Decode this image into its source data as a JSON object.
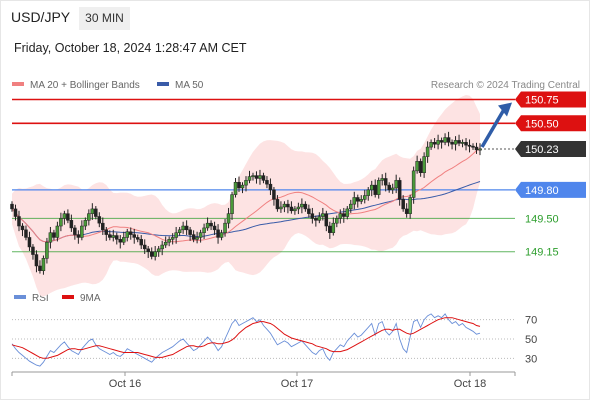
{
  "header": {
    "symbol": "USD/JPY",
    "timeframe": "30 MIN",
    "datetime": "Friday, October 18, 2024 1:28:47 AM CET",
    "source": "Research © 2024 Trading Central"
  },
  "legend": {
    "ma20": "MA 20 + Bollinger Bands",
    "ma50": "MA 50",
    "rsi": "RSI",
    "ma9": "9MA"
  },
  "colors": {
    "resistance": "#dd1111",
    "support": "#2d9e2d",
    "pivot": "#4f86ec",
    "ma20": "#f08080",
    "ma50": "#395ba8",
    "bollinger_fill": "#fde3e3",
    "rsi": "#6a8fd8",
    "rsi_ma": "#dd1111",
    "arrow": "#2f5da8"
  },
  "chart_data": [
    {
      "type": "candlestick",
      "x_labels": [
        "Oct 16",
        "Oct 17",
        "Oct 18"
      ],
      "levels": [
        {
          "value": "150.75",
          "kind": "resistance"
        },
        {
          "value": "150.50",
          "kind": "resistance"
        },
        {
          "value": "150.23",
          "kind": "last"
        },
        {
          "value": "149.80",
          "kind": "pivot"
        },
        {
          "value": "149.50",
          "kind": "support"
        },
        {
          "value": "149.15",
          "kind": "support"
        }
      ],
      "closes": [
        149.6,
        149.52,
        149.42,
        149.38,
        149.3,
        149.2,
        149.12,
        149.0,
        148.95,
        149.08,
        149.25,
        149.35,
        149.3,
        149.42,
        149.5,
        149.55,
        149.48,
        149.4,
        149.33,
        149.3,
        149.42,
        149.48,
        149.55,
        149.6,
        149.52,
        149.45,
        149.38,
        149.33,
        149.3,
        149.32,
        149.28,
        149.25,
        149.3,
        149.36,
        149.33,
        149.3,
        149.28,
        149.22,
        149.18,
        149.15,
        149.1,
        149.15,
        149.18,
        149.22,
        149.25,
        149.28,
        149.3,
        149.35,
        149.38,
        149.42,
        149.38,
        149.33,
        149.28,
        149.3,
        149.35,
        149.4,
        149.45,
        149.42,
        149.38,
        149.3,
        149.35,
        149.45,
        149.55,
        149.75,
        149.88,
        149.82,
        149.85,
        149.9,
        149.94,
        149.95,
        149.92,
        149.95,
        149.9,
        149.86,
        149.8,
        149.7,
        149.6,
        149.62,
        149.65,
        149.62,
        149.58,
        149.6,
        149.62,
        149.65,
        149.6,
        149.55,
        149.5,
        149.48,
        149.52,
        149.55,
        149.42,
        149.35,
        149.45,
        149.5,
        149.55,
        149.52,
        149.6,
        149.65,
        149.72,
        149.68,
        149.7,
        149.74,
        149.8,
        149.85,
        149.75,
        149.9,
        149.92,
        149.85,
        149.8,
        149.82,
        149.9,
        149.7,
        149.6,
        149.55,
        149.72,
        150.0,
        150.1,
        149.98,
        150.15,
        150.25,
        150.3,
        150.28,
        150.32,
        150.3,
        150.35,
        150.3,
        150.28,
        150.32,
        150.29,
        150.3,
        150.27,
        150.26,
        150.25,
        150.22,
        150.23
      ],
      "y_range": [
        148.8,
        150.85
      ]
    },
    {
      "type": "line",
      "title": "RSI",
      "y_ticks": [
        "70",
        "50",
        "30"
      ],
      "y_range": [
        20,
        80
      ],
      "series": [
        {
          "name": "RSI",
          "values": [
            45,
            40,
            36,
            33,
            30,
            27,
            25,
            23,
            22,
            26,
            32,
            38,
            36,
            40,
            44,
            47,
            42,
            38,
            36,
            34,
            40,
            44,
            48,
            50,
            44,
            40,
            38,
            36,
            34,
            36,
            33,
            32,
            35,
            40,
            38,
            36,
            34,
            32,
            30,
            28,
            26,
            30,
            33,
            36,
            38,
            40,
            42,
            45,
            48,
            50,
            46,
            42,
            38,
            40,
            44,
            48,
            52,
            48,
            44,
            38,
            42,
            50,
            58,
            66,
            70,
            64,
            66,
            68,
            70,
            72,
            68,
            70,
            64,
            60,
            56,
            50,
            44,
            46,
            48,
            46,
            42,
            44,
            46,
            48,
            44,
            40,
            36,
            34,
            38,
            40,
            32,
            28,
            36,
            40,
            44,
            42,
            48,
            52,
            56,
            52,
            54,
            58,
            62,
            66,
            54,
            66,
            68,
            58,
            54,
            58,
            66,
            50,
            40,
            36,
            52,
            68,
            70,
            62,
            70,
            74,
            76,
            72,
            74,
            72,
            76,
            70,
            66,
            68,
            64,
            66,
            62,
            60,
            58,
            55,
            56
          ]
        },
        {
          "name": "9MA",
          "values": [
            44,
            43,
            42,
            41,
            39,
            37,
            35,
            33,
            31,
            30,
            30,
            31,
            32,
            33,
            35,
            37,
            39,
            40,
            40,
            39,
            39,
            40,
            41,
            42,
            43,
            43,
            42,
            41,
            40,
            39,
            38,
            37,
            36,
            36,
            36,
            36,
            36,
            35,
            34,
            33,
            32,
            31,
            31,
            31,
            32,
            33,
            34,
            36,
            38,
            40,
            42,
            43,
            43,
            42,
            42,
            43,
            45,
            46,
            46,
            45,
            45,
            46,
            47,
            49,
            52,
            56,
            59,
            62,
            64,
            66,
            67,
            68,
            68,
            67,
            66,
            64,
            61,
            58,
            55,
            53,
            51,
            50,
            49,
            48,
            47,
            46,
            45,
            43,
            42,
            41,
            40,
            38,
            37,
            37,
            37,
            38,
            39,
            41,
            43,
            45,
            47,
            49,
            51,
            53,
            55,
            57,
            59,
            60,
            60,
            59,
            60,
            60,
            58,
            56,
            55,
            56,
            58,
            60,
            62,
            64,
            66,
            68,
            70,
            71,
            72,
            72,
            72,
            71,
            70,
            69,
            68,
            67,
            66,
            64,
            63
          ]
        }
      ]
    }
  ]
}
